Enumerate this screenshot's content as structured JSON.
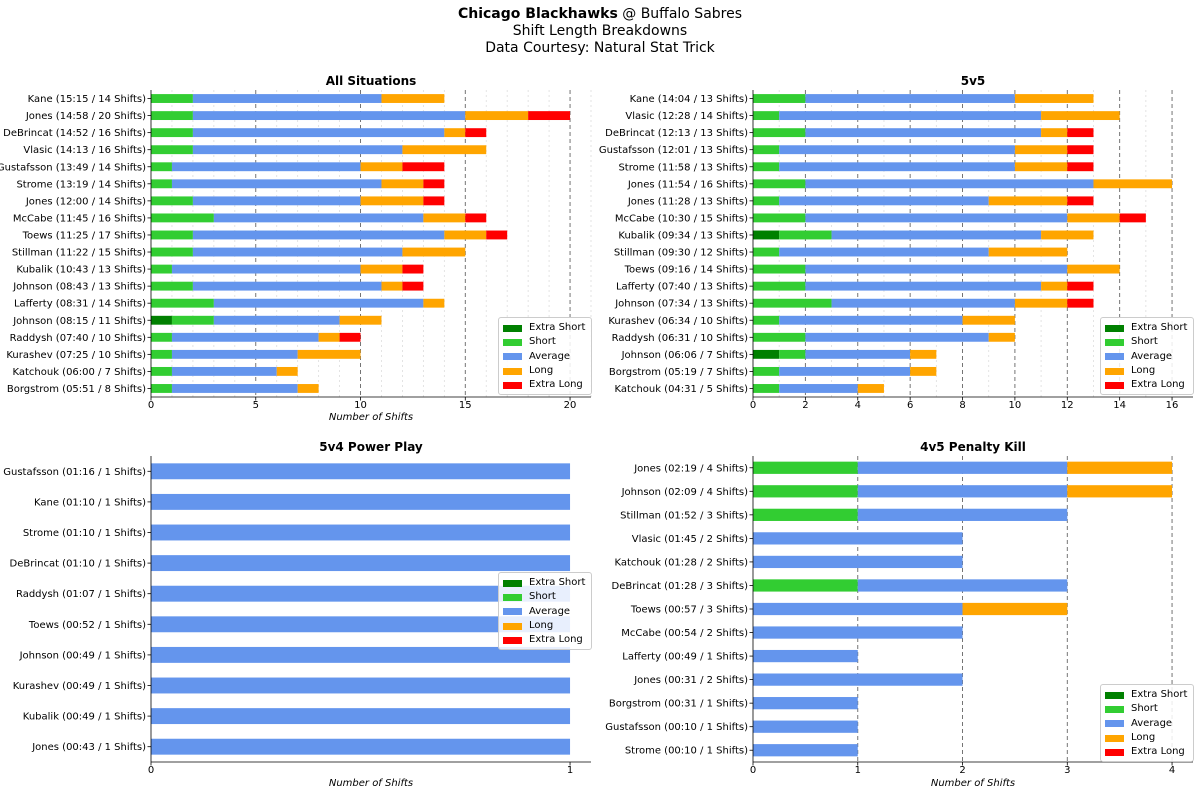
{
  "header": {
    "team_away": "Chicago Blackhawks",
    "at": " @ ",
    "team_home": "Buffalo Sabres",
    "subtitle": "Shift Length Breakdowns",
    "credit": "Data Courtesy: Natural Stat Trick"
  },
  "legend": {
    "items": [
      {
        "label": "Extra Short",
        "color": "#008000"
      },
      {
        "label": "Short",
        "color": "#32cd32"
      },
      {
        "label": "Average",
        "color": "#6495ed"
      },
      {
        "label": "Long",
        "color": "#ffa500"
      },
      {
        "label": "Extra Long",
        "color": "#ff0000"
      }
    ]
  },
  "chart_data": [
    {
      "type": "bar",
      "orientation": "horizontal",
      "stacked": true,
      "title": "All Situations",
      "xlabel": "Number of Shifts",
      "xlim": [
        0,
        21
      ],
      "xticks": [
        0,
        5,
        10,
        15,
        20
      ],
      "grid": "vertical dashed lines at major ticks, dotted at minor ticks",
      "legend_position": "lower-right",
      "categories": [
        "Kane (15:15 / 14 Shifts)",
        "Jones (14:58 / 20 Shifts)",
        "DeBrincat (14:52 / 16 Shifts)",
        "Vlasic (14:13 / 16 Shifts)",
        "Gustafsson (13:49 / 14 Shifts)",
        "Strome (13:19 / 14 Shifts)",
        "Jones (12:00 / 14 Shifts)",
        "McCabe (11:45 / 16 Shifts)",
        "Toews (11:25 / 17 Shifts)",
        "Stillman (11:22 / 15 Shifts)",
        "Kubalik (10:43 / 13 Shifts)",
        "Johnson (08:43 / 13 Shifts)",
        "Lafferty (08:31 / 14 Shifts)",
        "Johnson (08:15 / 11 Shifts)",
        "Raddysh (07:40 / 10 Shifts)",
        "Kurashev (07:25 / 10 Shifts)",
        "Katchouk (06:00 / 7 Shifts)",
        "Borgstrom (05:51 / 8 Shifts)"
      ],
      "series": [
        {
          "name": "Extra Short",
          "values": [
            0,
            0,
            0,
            0,
            0,
            0,
            0,
            0,
            0,
            0,
            0,
            0,
            0,
            1,
            0,
            0,
            0,
            0
          ]
        },
        {
          "name": "Short",
          "values": [
            2,
            2,
            2,
            2,
            1,
            1,
            2,
            3,
            2,
            2,
            1,
            2,
            3,
            2,
            1,
            1,
            1,
            1
          ]
        },
        {
          "name": "Average",
          "values": [
            9,
            13,
            12,
            10,
            9,
            10,
            8,
            10,
            12,
            10,
            9,
            9,
            10,
            6,
            7,
            6,
            5,
            6
          ]
        },
        {
          "name": "Long",
          "values": [
            3,
            3,
            1,
            4,
            2,
            2,
            3,
            2,
            2,
            3,
            2,
            1,
            1,
            2,
            1,
            3,
            1,
            1
          ]
        },
        {
          "name": "Extra Long",
          "values": [
            0,
            2,
            1,
            0,
            2,
            1,
            1,
            1,
            1,
            0,
            1,
            1,
            0,
            0,
            1,
            0,
            0,
            0
          ]
        }
      ]
    },
    {
      "type": "bar",
      "orientation": "horizontal",
      "stacked": true,
      "title": "5v5",
      "xlabel": "",
      "xlim": [
        0,
        16.8
      ],
      "xticks": [
        0,
        2,
        4,
        6,
        8,
        10,
        12,
        14,
        16
      ],
      "grid": "vertical dashed lines at major ticks, dotted at minor ticks",
      "legend_position": "lower-right",
      "categories": [
        "Kane (14:04 / 13 Shifts)",
        "Vlasic (12:28 / 14 Shifts)",
        "DeBrincat (12:13 / 13 Shifts)",
        "Gustafsson (12:01 / 13 Shifts)",
        "Strome (11:58 / 13 Shifts)",
        "Jones (11:54 / 16 Shifts)",
        "Jones (11:28 / 13 Shifts)",
        "McCabe (10:30 / 15 Shifts)",
        "Kubalik (09:34 / 13 Shifts)",
        "Stillman (09:30 / 12 Shifts)",
        "Toews (09:16 / 14 Shifts)",
        "Lafferty (07:40 / 13 Shifts)",
        "Johnson (07:34 / 13 Shifts)",
        "Kurashev (06:34 / 10 Shifts)",
        "Raddysh (06:31 / 10 Shifts)",
        "Johnson (06:06 / 7 Shifts)",
        "Borgstrom (05:19 / 7 Shifts)",
        "Katchouk (04:31 / 5 Shifts)"
      ],
      "series": [
        {
          "name": "Extra Short",
          "values": [
            0,
            0,
            0,
            0,
            0,
            0,
            0,
            0,
            1,
            0,
            0,
            0,
            0,
            0,
            0,
            1,
            0,
            0
          ]
        },
        {
          "name": "Short",
          "values": [
            2,
            1,
            2,
            1,
            1,
            2,
            1,
            2,
            2,
            1,
            2,
            2,
            3,
            1,
            2,
            1,
            1,
            1
          ]
        },
        {
          "name": "Average",
          "values": [
            8,
            10,
            9,
            9,
            9,
            11,
            8,
            10,
            8,
            8,
            10,
            9,
            7,
            7,
            7,
            4,
            5,
            3
          ]
        },
        {
          "name": "Long",
          "values": [
            3,
            3,
            1,
            2,
            2,
            3,
            3,
            2,
            2,
            3,
            2,
            1,
            2,
            2,
            1,
            1,
            1,
            1
          ]
        },
        {
          "name": "Extra Long",
          "values": [
            0,
            0,
            1,
            1,
            1,
            0,
            1,
            1,
            0,
            0,
            0,
            1,
            1,
            0,
            0,
            0,
            0,
            0
          ]
        }
      ]
    },
    {
      "type": "bar",
      "orientation": "horizontal",
      "stacked": true,
      "title": "5v4 Power Play",
      "xlabel": "Number of Shifts",
      "xlim": [
        0,
        1.05
      ],
      "xticks": [
        0,
        1
      ],
      "grid": "none",
      "legend_position": "center-right",
      "categories": [
        "Gustafsson (01:16 / 1 Shifts)",
        "Kane (01:10 / 1 Shifts)",
        "Strome (01:10 / 1 Shifts)",
        "DeBrincat (01:10 / 1 Shifts)",
        "Raddysh (01:07 / 1 Shifts)",
        "Toews (00:52 / 1 Shifts)",
        "Johnson (00:49 / 1 Shifts)",
        "Kurashev (00:49 / 1 Shifts)",
        "Kubalik (00:49 / 1 Shifts)",
        "Jones (00:43 / 1 Shifts)"
      ],
      "series": [
        {
          "name": "Extra Short",
          "values": [
            0,
            0,
            0,
            0,
            0,
            0,
            0,
            0,
            0,
            0
          ]
        },
        {
          "name": "Short",
          "values": [
            0,
            0,
            0,
            0,
            0,
            0,
            0,
            0,
            0,
            0
          ]
        },
        {
          "name": "Average",
          "values": [
            1,
            1,
            1,
            1,
            1,
            1,
            1,
            1,
            1,
            1
          ]
        },
        {
          "name": "Long",
          "values": [
            0,
            0,
            0,
            0,
            0,
            0,
            0,
            0,
            0,
            0
          ]
        },
        {
          "name": "Extra Long",
          "values": [
            0,
            0,
            0,
            0,
            0,
            0,
            0,
            0,
            0,
            0
          ]
        }
      ]
    },
    {
      "type": "bar",
      "orientation": "horizontal",
      "stacked": true,
      "title": "4v5 Penalty Kill",
      "xlabel": "Number of Shifts",
      "xlim": [
        0,
        4.2
      ],
      "xticks": [
        0,
        1,
        2,
        3,
        4
      ],
      "grid": "vertical dashed lines at major ticks",
      "legend_position": "lower-right",
      "categories": [
        "Jones (02:19 / 4 Shifts)",
        "Johnson (02:09 / 4 Shifts)",
        "Stillman (01:52 / 3 Shifts)",
        "Vlasic (01:45 / 2 Shifts)",
        "Katchouk (01:28 / 2 Shifts)",
        "DeBrincat (01:28 / 3 Shifts)",
        "Toews (00:57 / 3 Shifts)",
        "McCabe (00:54 / 2 Shifts)",
        "Lafferty (00:49 / 1 Shifts)",
        "Jones (00:31 / 2 Shifts)",
        "Borgstrom (00:31 / 1 Shifts)",
        "Gustafsson (00:10 / 1 Shifts)",
        "Strome (00:10 / 1 Shifts)"
      ],
      "series": [
        {
          "name": "Extra Short",
          "values": [
            0,
            0,
            0,
            0,
            0,
            0,
            0,
            0,
            0,
            0,
            0,
            0,
            0
          ]
        },
        {
          "name": "Short",
          "values": [
            1,
            1,
            1,
            0,
            0,
            1,
            0,
            0,
            0,
            0,
            0,
            0,
            0
          ]
        },
        {
          "name": "Average",
          "values": [
            2,
            2,
            2,
            2,
            2,
            2,
            2,
            2,
            1,
            2,
            1,
            1,
            1
          ]
        },
        {
          "name": "Long",
          "values": [
            1,
            1,
            0,
            0,
            0,
            0,
            1,
            0,
            0,
            0,
            0,
            0,
            0
          ]
        },
        {
          "name": "Extra Long",
          "values": [
            0,
            0,
            0,
            0,
            0,
            0,
            0,
            0,
            0,
            0,
            0,
            0,
            0
          ]
        }
      ]
    }
  ]
}
